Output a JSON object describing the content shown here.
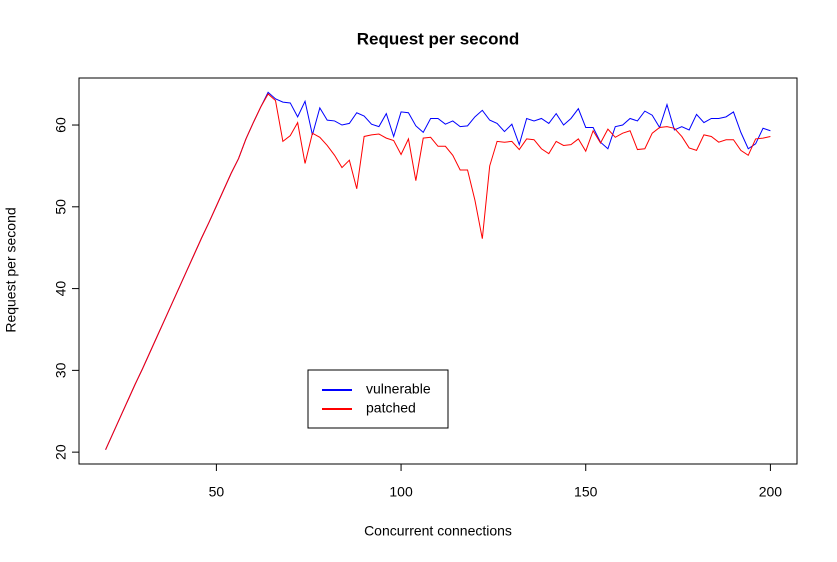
{
  "chart_data": {
    "type": "line",
    "title": "Request per second",
    "xlabel": "Concurrent connections",
    "ylabel": "Request per second",
    "x": [
      20,
      22,
      24,
      26,
      28,
      30,
      32,
      34,
      36,
      38,
      40,
      42,
      44,
      46,
      48,
      50,
      52,
      54,
      56,
      58,
      60,
      62,
      64,
      66,
      68,
      70,
      72,
      74,
      76,
      78,
      80,
      82,
      84,
      86,
      88,
      90,
      92,
      94,
      96,
      98,
      100,
      102,
      104,
      106,
      108,
      110,
      112,
      114,
      116,
      118,
      120,
      122,
      124,
      126,
      128,
      130,
      132,
      134,
      136,
      138,
      140,
      142,
      144,
      146,
      148,
      150,
      152,
      154,
      156,
      158,
      160,
      162,
      164,
      166,
      168,
      170,
      172,
      174,
      176,
      178,
      180,
      182,
      184,
      186,
      188,
      190,
      192,
      194,
      196,
      198,
      200
    ],
    "series": [
      {
        "name": "vulnerable",
        "color": "#0000ff",
        "values": [
          20.3,
          22.3,
          24.3,
          26.3,
          28.3,
          30.2,
          32.2,
          34.2,
          36.2,
          38.2,
          40.2,
          42.2,
          44.2,
          46.2,
          48.1,
          50.1,
          52.1,
          54.1,
          55.9,
          58.3,
          60.3,
          62.2,
          64.0,
          63.2,
          62.8,
          62.7,
          61.0,
          62.9,
          58.8,
          62.1,
          60.6,
          60.5,
          60.0,
          60.2,
          61.5,
          61.1,
          60.1,
          59.8,
          61.4,
          58.6,
          61.6,
          61.5,
          59.9,
          59.1,
          60.8,
          60.8,
          60.1,
          60.5,
          59.8,
          59.9,
          61.0,
          61.8,
          60.6,
          60.2,
          59.2,
          60.1,
          57.6,
          60.8,
          60.5,
          60.8,
          60.2,
          61.4,
          60.0,
          60.8,
          62.0,
          59.7,
          59.7,
          57.9,
          57.1,
          59.8,
          60.0,
          60.8,
          60.5,
          61.7,
          61.2,
          59.7,
          62.5,
          59.4,
          59.8,
          59.4,
          61.3,
          60.3,
          60.8,
          60.8,
          61.0,
          61.6,
          59.1,
          57.1,
          57.7,
          59.6,
          59.3
        ]
      },
      {
        "name": "patched",
        "color": "#ff0000",
        "values": [
          20.3,
          22.3,
          24.3,
          26.3,
          28.3,
          30.2,
          32.2,
          34.2,
          36.2,
          38.2,
          40.2,
          42.2,
          44.2,
          46.2,
          48.1,
          50.1,
          52.1,
          54.1,
          55.9,
          58.3,
          60.3,
          62.2,
          63.8,
          63.0,
          58.0,
          58.7,
          60.3,
          55.3,
          59.0,
          58.5,
          57.5,
          56.3,
          54.8,
          55.7,
          52.2,
          58.6,
          58.8,
          58.9,
          58.4,
          58.1,
          56.4,
          58.3,
          53.2,
          58.4,
          58.5,
          57.4,
          57.4,
          56.3,
          54.5,
          54.5,
          50.8,
          46.1,
          55.0,
          58.0,
          57.9,
          58.0,
          57.0,
          58.3,
          58.2,
          57.1,
          56.5,
          58.0,
          57.5,
          57.6,
          58.3,
          56.8,
          59.3,
          57.8,
          59.5,
          58.5,
          59.0,
          59.3,
          57.0,
          57.1,
          59.0,
          59.7,
          59.8,
          59.6,
          58.6,
          57.2,
          56.9,
          58.8,
          58.6,
          57.9,
          58.2,
          58.2,
          56.9,
          56.3,
          58.3,
          58.4,
          58.6
        ]
      }
    ],
    "xlim": [
      12.8,
      207.2
    ],
    "xticks": [
      50,
      100,
      150,
      200
    ],
    "ylim": [
      18.55,
      65.75
    ],
    "yticks": [
      20,
      30,
      40,
      50,
      60
    ]
  }
}
